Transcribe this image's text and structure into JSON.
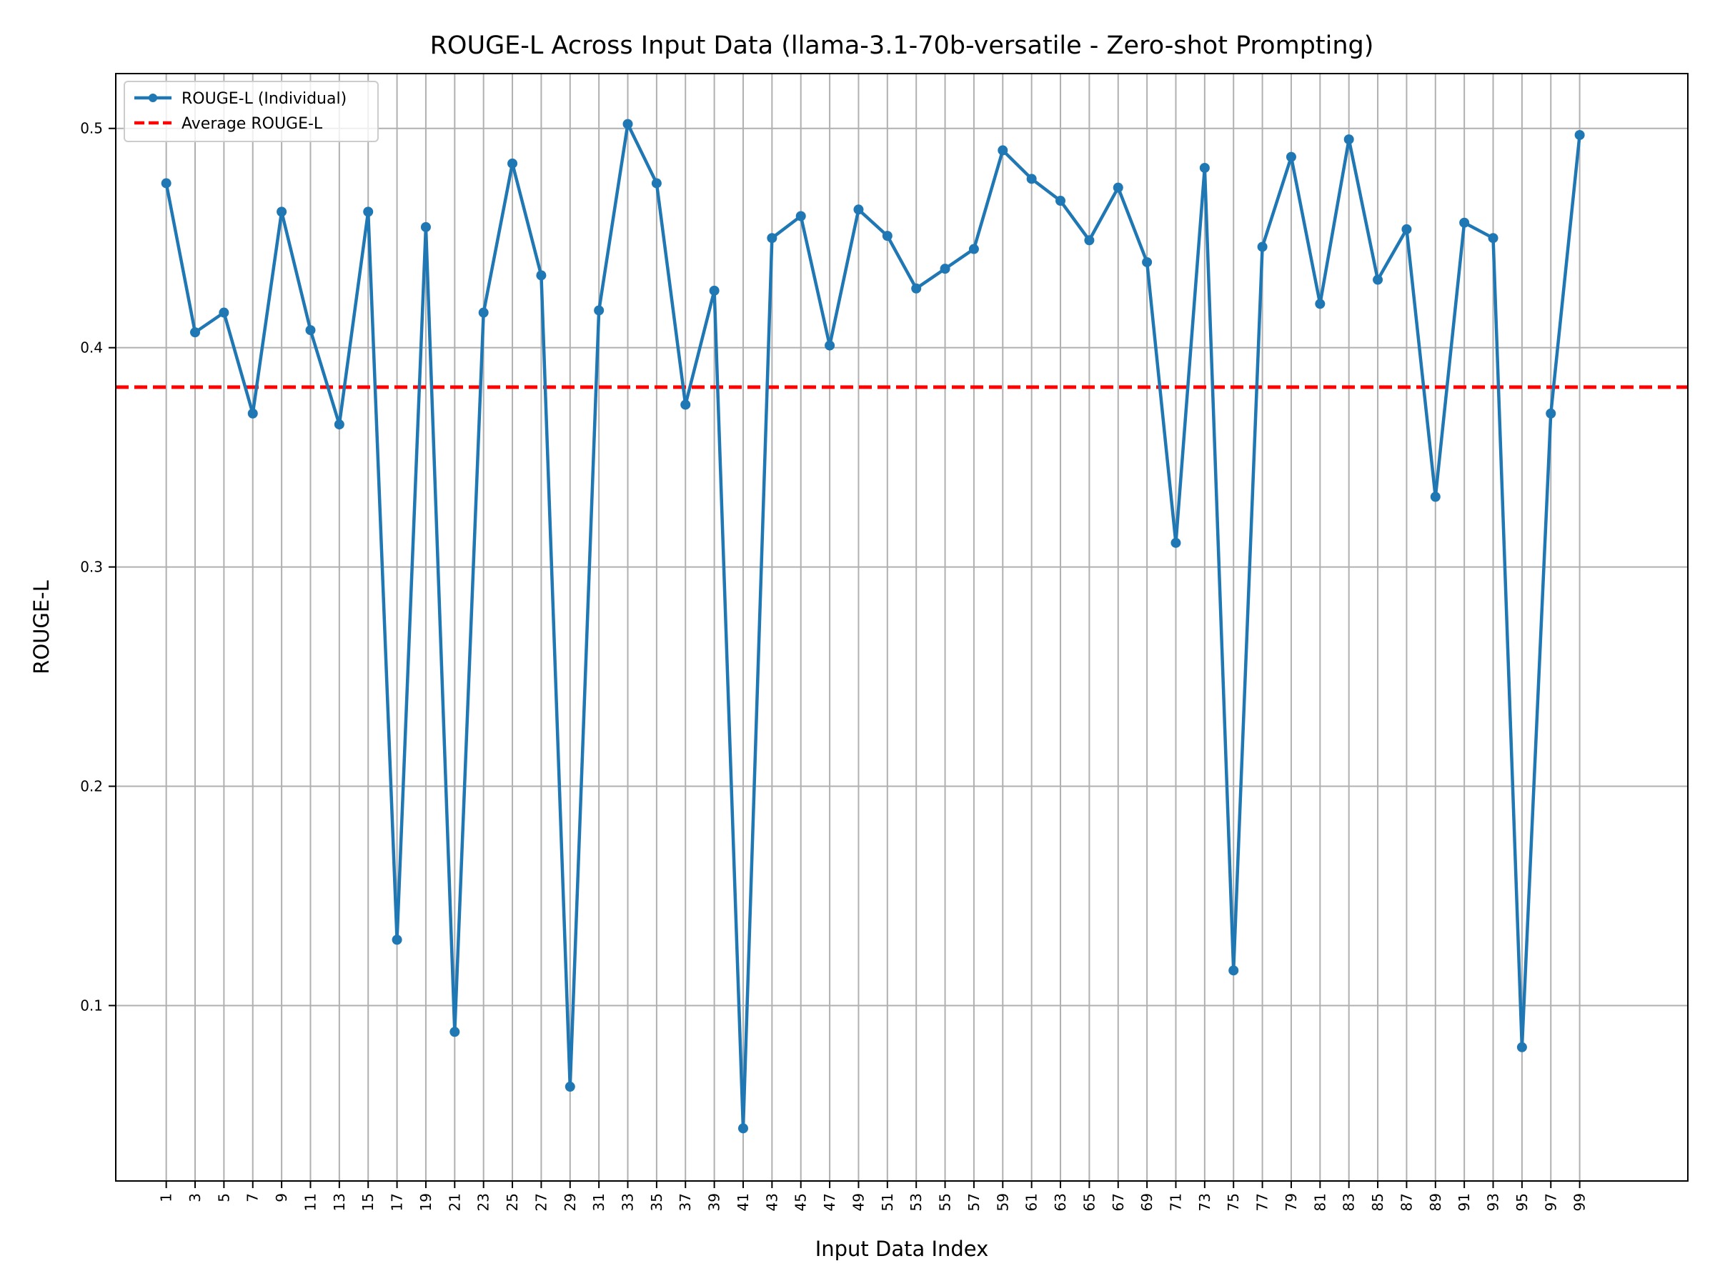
{
  "chart_data": {
    "type": "line",
    "title": "ROUGE-L Across Input Data (llama-3.1-70b-versatile - Zero-shot Prompting)",
    "xlabel": "Input Data Index",
    "ylabel": "ROUGE-L",
    "xlim": [
      -2.5,
      106.5
    ],
    "ylim": [
      0.02,
      0.525
    ],
    "grid": true,
    "legend_position": "upper-left",
    "x_ticks": [
      1,
      3,
      5,
      7,
      9,
      11,
      13,
      15,
      17,
      19,
      21,
      23,
      25,
      27,
      29,
      31,
      33,
      35,
      37,
      39,
      41,
      43,
      45,
      47,
      49,
      51,
      53,
      55,
      57,
      59,
      61,
      63,
      65,
      67,
      69,
      71,
      73,
      75,
      77,
      79,
      81,
      83,
      85,
      87,
      89,
      91,
      93,
      95,
      97,
      99
    ],
    "y_ticks": [
      0.1,
      0.2,
      0.3,
      0.4,
      0.5
    ],
    "series": [
      {
        "name": "ROUGE-L (Individual)",
        "color": "#1f77b4",
        "style": "solid-with-markers",
        "x": [
          1,
          3,
          5,
          7,
          9,
          11,
          13,
          15,
          17,
          19,
          21,
          23,
          25,
          27,
          29,
          31,
          33,
          35,
          37,
          39,
          41,
          43,
          45,
          47,
          49,
          51,
          53,
          55,
          57,
          59,
          61,
          63,
          65,
          67,
          69,
          71,
          73,
          75,
          77,
          79,
          81,
          83,
          85,
          87,
          89,
          91,
          93,
          95,
          97,
          99
        ],
        "values": [
          0.475,
          0.407,
          0.416,
          0.37,
          0.462,
          0.408,
          0.365,
          0.462,
          0.13,
          0.455,
          0.088,
          0.416,
          0.484,
          0.433,
          0.063,
          0.417,
          0.502,
          0.475,
          0.374,
          0.426,
          0.044,
          0.45,
          0.46,
          0.401,
          0.463,
          0.451,
          0.427,
          0.436,
          0.445,
          0.49,
          0.477,
          0.467,
          0.449,
          0.473,
          0.439,
          0.311,
          0.482,
          0.116,
          0.446,
          0.487,
          0.42,
          0.495,
          0.431,
          0.454,
          0.332,
          0.457,
          0.45,
          0.081,
          0.37,
          0.497
        ]
      },
      {
        "name": "Average ROUGE-L",
        "color": "#ff0000",
        "style": "dashed",
        "value": 0.382
      }
    ]
  }
}
